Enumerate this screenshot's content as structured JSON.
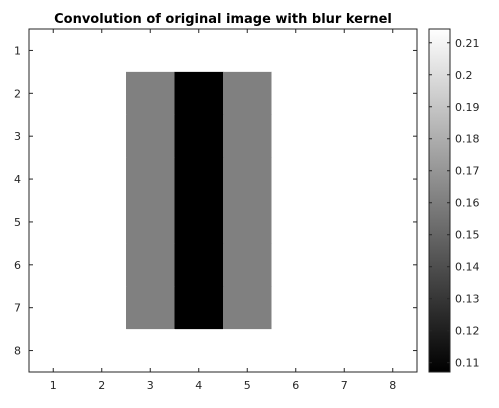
{
  "chart_data": {
    "type": "heatmap",
    "title": "Convolution of original image with blur kernel",
    "xlabel": "",
    "ylabel": "",
    "x_ticks": [
      "1",
      "2",
      "3",
      "4",
      "5",
      "6",
      "7",
      "8"
    ],
    "y_ticks": [
      "1",
      "2",
      "3",
      "4",
      "5",
      "6",
      "7",
      "8"
    ],
    "x_range": [
      0.5,
      8.5
    ],
    "y_range": [
      0.5,
      8.5
    ],
    "y_direction": "reverse",
    "colormap": "gray",
    "clim": [
      0.1071,
      0.2143
    ],
    "matrix": [
      [
        0.2143,
        0.2143,
        0.2143,
        0.2143,
        0.2143,
        0.2143,
        0.2143,
        0.2143
      ],
      [
        0.2143,
        0.2143,
        0.1607,
        0.1071,
        0.1607,
        0.2143,
        0.2143,
        0.2143
      ],
      [
        0.2143,
        0.2143,
        0.1607,
        0.1071,
        0.1607,
        0.2143,
        0.2143,
        0.2143
      ],
      [
        0.2143,
        0.2143,
        0.1607,
        0.1071,
        0.1607,
        0.2143,
        0.2143,
        0.2143
      ],
      [
        0.2143,
        0.2143,
        0.1607,
        0.1071,
        0.1607,
        0.2143,
        0.2143,
        0.2143
      ],
      [
        0.2143,
        0.2143,
        0.1607,
        0.1071,
        0.1607,
        0.2143,
        0.2143,
        0.2143
      ],
      [
        0.2143,
        0.2143,
        0.1607,
        0.1071,
        0.1607,
        0.2143,
        0.2143,
        0.2143
      ],
      [
        0.2143,
        0.2143,
        0.2143,
        0.2143,
        0.2143,
        0.2143,
        0.2143,
        0.2143
      ]
    ],
    "colorbar": {
      "position": "right",
      "ticks": [
        "0.11",
        "0.12",
        "0.13",
        "0.14",
        "0.15",
        "0.16",
        "0.17",
        "0.18",
        "0.19",
        "0.2",
        "0.21"
      ],
      "tick_values": [
        0.11,
        0.12,
        0.13,
        0.14,
        0.15,
        0.16,
        0.17,
        0.18,
        0.19,
        0.2,
        0.21
      ]
    }
  }
}
